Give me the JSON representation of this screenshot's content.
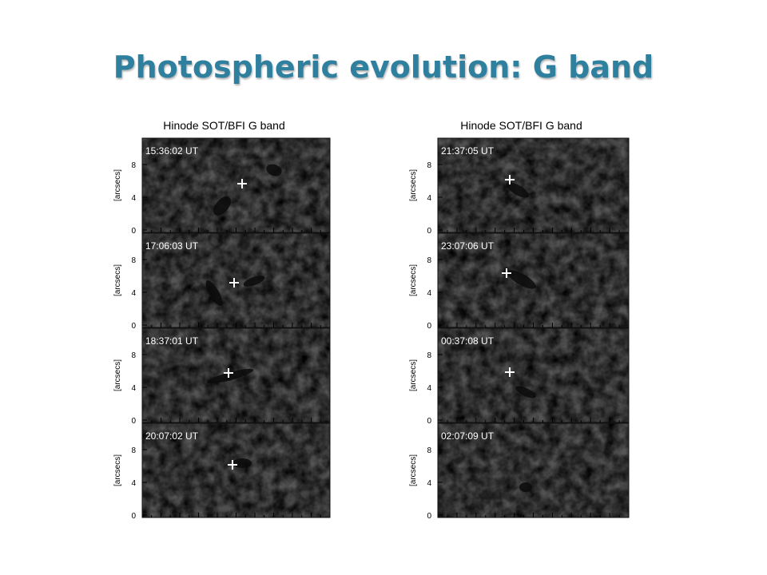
{
  "title": "Photospheric evolution: G band",
  "columns": [
    {
      "header": "Hinode SOT/BFI G band",
      "panels": [
        {
          "time": "15:36:02 UT",
          "y_label": "[arcsecs]",
          "y_ticks": [
            "0",
            "4",
            "8"
          ]
        },
        {
          "time": "17:06:03 UT",
          "y_label": "[arcsecs]",
          "y_ticks": [
            "0",
            "4",
            "8"
          ]
        },
        {
          "time": "18:37:01 UT",
          "y_label": "[arcsecs]",
          "y_ticks": [
            "0",
            "4",
            "8"
          ]
        },
        {
          "time": "20:07:02 UT",
          "y_label": "[arcsecs]",
          "y_ticks": [
            "0",
            "4",
            "8"
          ]
        }
      ]
    },
    {
      "header": "Hinode SOT/BFI G band",
      "panels": [
        {
          "time": "21:37:05 UT",
          "y_label": "[arcsecs]",
          "y_ticks": [
            "0",
            "4",
            "8"
          ]
        },
        {
          "time": "23:07:06 UT",
          "y_label": "[arcsecs]",
          "y_ticks": [
            "0",
            "4",
            "8"
          ]
        },
        {
          "time": "00:37:08 UT",
          "y_label": "[arcsecs]",
          "y_ticks": [
            "0",
            "4",
            "8"
          ]
        },
        {
          "time": "02:07:09 UT",
          "y_label": "[arcsecs]",
          "y_ticks": [
            "0",
            "4",
            "8"
          ]
        }
      ]
    }
  ]
}
